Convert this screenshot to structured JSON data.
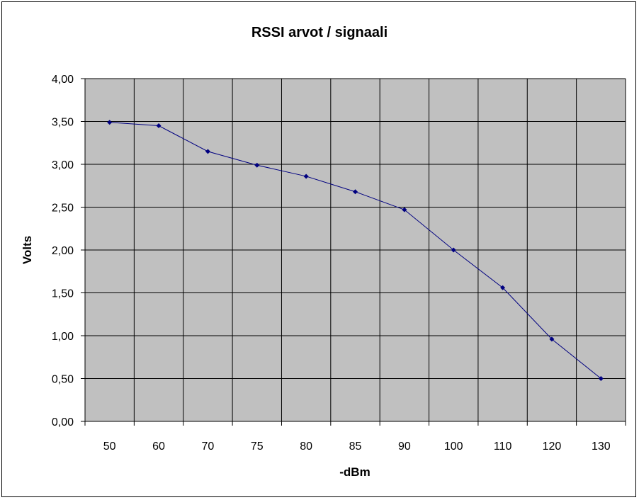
{
  "chart_data": {
    "type": "line",
    "title": "RSSI arvot / signaali",
    "xlabel": "-dBm",
    "ylabel": "Volts",
    "categories": [
      "50",
      "60",
      "70",
      "75",
      "80",
      "85",
      "90",
      "100",
      "110",
      "120",
      "130"
    ],
    "series": [
      {
        "values": [
          3.49,
          3.45,
          3.15,
          2.99,
          2.86,
          2.68,
          2.47,
          2.0,
          1.56,
          0.96,
          0.5
        ]
      }
    ],
    "ylim": [
      0,
      4
    ],
    "y_ticks": [
      "0,00",
      "0,50",
      "1,00",
      "1,50",
      "2,00",
      "2,50",
      "3,00",
      "3,50",
      "4,00"
    ],
    "grid": true,
    "colors": {
      "plot_bg": "#c0c0c0",
      "grid": "#000000",
      "line": "#000080",
      "marker": "#000080"
    },
    "legend": "none"
  }
}
